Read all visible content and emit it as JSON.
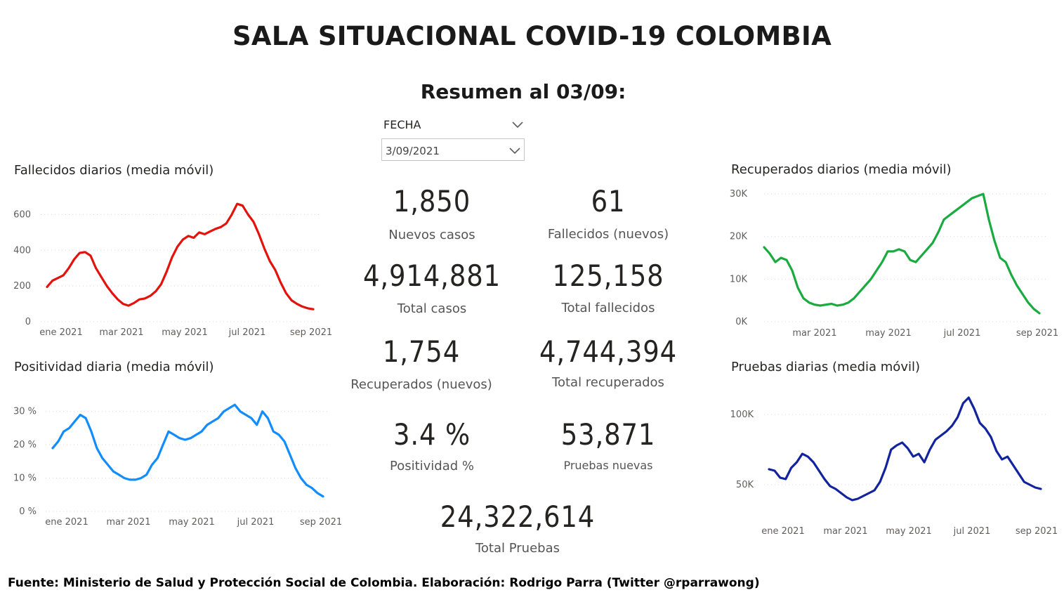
{
  "header": {
    "title": "SALA SITUACIONAL COVID-19 COLOMBIA",
    "subtitle": "Resumen al 03/09:"
  },
  "slicer": {
    "label": "FECHA",
    "value": "3/09/2021"
  },
  "kpis": [
    {
      "value": "1,850",
      "label": "Nuevos casos"
    },
    {
      "value": "61",
      "label": "Fallecidos (nuevos)"
    },
    {
      "value": "4,914,881",
      "label": "Total casos"
    },
    {
      "value": "125,158",
      "label": "Total fallecidos"
    },
    {
      "value": "1,754",
      "label": "Recuperados (nuevos)"
    },
    {
      "value": "4,744,394",
      "label": "Total recuperados"
    },
    {
      "value": "3.4 %",
      "label": "Positividad %"
    },
    {
      "value": "53,871",
      "label": "Pruebas nuevas"
    },
    {
      "value": "24,322,614",
      "label": "Total Pruebas"
    }
  ],
  "footer": "Fuente: Ministerio de Salud y Protección Social de Colombia. Elaboración: Rodrigo Parra (Twitter @rparrawong)",
  "chart_data": [
    {
      "id": "fallecidos",
      "type": "line",
      "title": "Fallecidos diarios (media móvil)",
      "color": "#e3120b",
      "x_ticks": [
        "ene 2021",
        "mar 2021",
        "may 2021",
        "jul 2021",
        "sep 2021"
      ],
      "y_ticks": [
        "0",
        "200",
        "400",
        "600"
      ],
      "ylim": [
        0,
        700
      ],
      "grid": true,
      "series": [
        {
          "values": [
            195,
            230,
            245,
            260,
            300,
            350,
            385,
            390,
            370,
            300,
            250,
            200,
            160,
            125,
            100,
            90,
            105,
            125,
            130,
            145,
            170,
            210,
            280,
            360,
            420,
            460,
            480,
            470,
            500,
            490,
            505,
            520,
            530,
            550,
            600,
            660,
            650,
            600,
            560,
            490,
            410,
            340,
            290,
            220,
            160,
            120,
            100,
            85,
            75,
            70
          ]
        }
      ]
    },
    {
      "id": "positividad",
      "type": "line",
      "title": "Positividad diaria (media móvil)",
      "color": "#118dff",
      "x_ticks": [
        "ene 2021",
        "mar 2021",
        "may 2021",
        "jul 2021",
        "sep 2021"
      ],
      "y_ticks": [
        "0 %",
        "10 %",
        "20 %",
        "30 %"
      ],
      "ylim": [
        0,
        35
      ],
      "grid": true,
      "series": [
        {
          "values": [
            19,
            21,
            24,
            25,
            27,
            29,
            28,
            24,
            19,
            16,
            14,
            12,
            11,
            10,
            9.5,
            9.5,
            10,
            11,
            14,
            16,
            20,
            24,
            23,
            22,
            21.5,
            22,
            23,
            24,
            26,
            27,
            28,
            30,
            31,
            32,
            30,
            29,
            28,
            26,
            30,
            28,
            24,
            23,
            21,
            17,
            13,
            10,
            8,
            7,
            5.5,
            4.5
          ]
        }
      ]
    },
    {
      "id": "recuperados",
      "type": "line",
      "title": "Recuperados diarios (media móvil)",
      "color": "#1aab40",
      "x_ticks": [
        "mar 2021",
        "may 2021",
        "jul 2021",
        "sep 2021"
      ],
      "y_ticks": [
        "0K",
        "10K",
        "20K",
        "30K"
      ],
      "ylim": [
        0,
        31000
      ],
      "grid": true,
      "series": [
        {
          "values": [
            17500,
            16000,
            14000,
            15000,
            14500,
            12000,
            8000,
            5500,
            4500,
            4000,
            3800,
            4000,
            4200,
            3800,
            4000,
            4500,
            5500,
            7000,
            8500,
            10000,
            12000,
            14000,
            16500,
            16500,
            17000,
            16500,
            14500,
            14000,
            15500,
            17000,
            18500,
            21000,
            24000,
            25000,
            26000,
            27000,
            28000,
            29000,
            29500,
            30000,
            24000,
            19000,
            15000,
            14000,
            11000,
            8500,
            6500,
            4500,
            3000,
            2000
          ]
        }
      ]
    },
    {
      "id": "pruebas",
      "type": "line",
      "title": "Pruebas diarias (media móvil)",
      "color": "#12239e",
      "x_ticks": [
        "ene 2021",
        "mar 2021",
        "may 2021",
        "jul 2021",
        "sep 2021"
      ],
      "y_ticks": [
        "50K",
        "100K"
      ],
      "ylim": [
        30000,
        115000
      ],
      "grid": true,
      "series": [
        {
          "values": [
            61000,
            60000,
            55000,
            54000,
            62000,
            66000,
            72000,
            70000,
            66000,
            60000,
            54000,
            49000,
            47000,
            44000,
            41000,
            39000,
            40000,
            42000,
            44000,
            46000,
            52000,
            62000,
            75000,
            78000,
            80000,
            76000,
            70000,
            72000,
            66000,
            75000,
            82000,
            85000,
            88000,
            92000,
            98000,
            108000,
            112000,
            104000,
            94000,
            90000,
            84000,
            74000,
            68000,
            70000,
            64000,
            58000,
            52000,
            50000,
            48000,
            47000
          ]
        }
      ]
    }
  ]
}
